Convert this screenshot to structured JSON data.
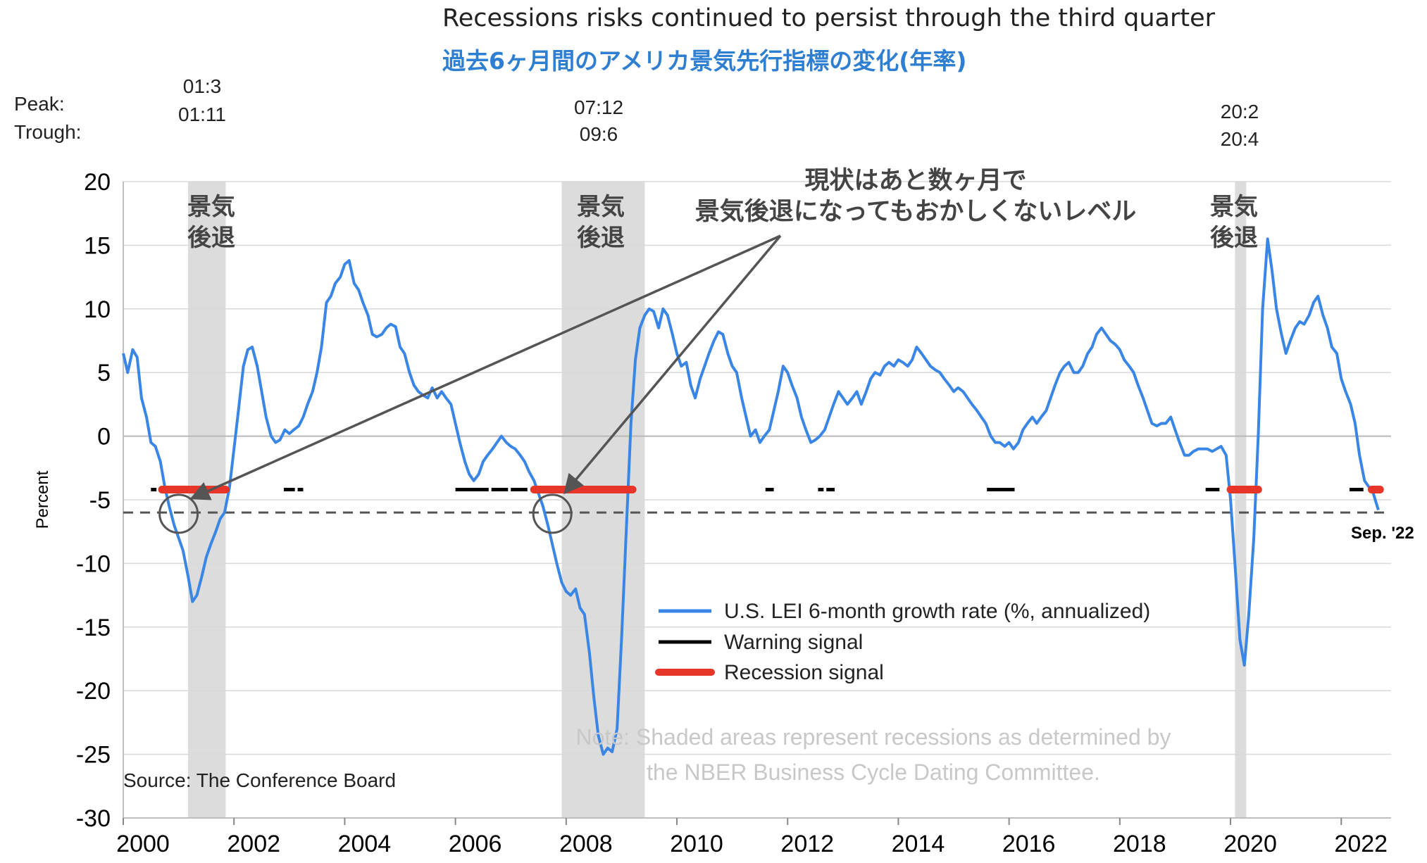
{
  "header": {
    "title": "Recessions risks continued to persist through the third quarter",
    "subtitle": "過去6ヶ月間のアメリカ景気先行指標の変化(年率)",
    "peak_label": "Peak:",
    "trough_label": "Trough:"
  },
  "colors": {
    "series": "#3a86e6",
    "warning": "#000000",
    "recession_signal": "#e8352a",
    "shade": "#dcdcdc",
    "grid": "#d9d9d9",
    "annotation": "#555555",
    "subtitle": "#2e7fd1"
  },
  "chart_data": {
    "type": "line",
    "ylabel": "Percent",
    "xlabel": "",
    "ylim": [
      -30,
      20
    ],
    "xlim": [
      2000,
      2022.9
    ],
    "yticks": [
      20,
      15,
      10,
      5,
      0,
      -5,
      -10,
      -15,
      -20,
      -25,
      -30
    ],
    "xtick_labels": [
      "2000",
      "2002",
      "2004",
      "2006",
      "2008",
      "2010",
      "2012",
      "2014",
      "2016",
      "2018",
      "2020",
      "2022"
    ],
    "grid": "horizontal",
    "legend_position": "lower-center",
    "recessions": [
      {
        "start": 2001.17,
        "end": 2001.85,
        "peak": "01:3",
        "trough": "01:11",
        "label": "景気\n後退"
      },
      {
        "start": 2007.92,
        "end": 2009.42,
        "peak": "07:12",
        "trough": "09:6",
        "label": "景気\n後退"
      },
      {
        "start": 2020.08,
        "end": 2020.25,
        "peak": "20:2",
        "trough": "20:4",
        "label": "景気\n後退"
      }
    ],
    "threshold": -6,
    "series": [
      {
        "name": "U.S. LEI 6-month growth rate (%, annualized)",
        "points": [
          [
            2000.0,
            6.5
          ],
          [
            2000.08,
            5
          ],
          [
            2000.17,
            6.8
          ],
          [
            2000.25,
            6.2
          ],
          [
            2000.33,
            3
          ],
          [
            2000.42,
            1.5
          ],
          [
            2000.5,
            -0.5
          ],
          [
            2000.58,
            -0.8
          ],
          [
            2000.67,
            -2
          ],
          [
            2000.75,
            -4
          ],
          [
            2000.83,
            -5.5
          ],
          [
            2000.92,
            -7
          ],
          [
            2001.0,
            -8
          ],
          [
            2001.08,
            -9
          ],
          [
            2001.17,
            -11
          ],
          [
            2001.25,
            -13
          ],
          [
            2001.33,
            -12.5
          ],
          [
            2001.42,
            -11
          ],
          [
            2001.5,
            -9.5
          ],
          [
            2001.58,
            -8.5
          ],
          [
            2001.67,
            -7.5
          ],
          [
            2001.75,
            -6.5
          ],
          [
            2001.83,
            -6
          ],
          [
            2001.92,
            -4
          ],
          [
            2002.0,
            -1
          ],
          [
            2002.08,
            2
          ],
          [
            2002.17,
            5.5
          ],
          [
            2002.25,
            6.8
          ],
          [
            2002.33,
            7
          ],
          [
            2002.42,
            5.5
          ],
          [
            2002.5,
            3.5
          ],
          [
            2002.58,
            1.5
          ],
          [
            2002.67,
            0
          ],
          [
            2002.75,
            -0.5
          ],
          [
            2002.83,
            -0.3
          ],
          [
            2002.92,
            0.5
          ],
          [
            2003.0,
            0.2
          ],
          [
            2003.08,
            0.5
          ],
          [
            2003.17,
            0.8
          ],
          [
            2003.25,
            1.5
          ],
          [
            2003.33,
            2.5
          ],
          [
            2003.42,
            3.5
          ],
          [
            2003.5,
            5
          ],
          [
            2003.58,
            7
          ],
          [
            2003.67,
            10.5
          ],
          [
            2003.75,
            11
          ],
          [
            2003.83,
            12
          ],
          [
            2003.92,
            12.5
          ],
          [
            2004.0,
            13.5
          ],
          [
            2004.08,
            13.8
          ],
          [
            2004.17,
            12
          ],
          [
            2004.25,
            11.5
          ],
          [
            2004.33,
            10.5
          ],
          [
            2004.42,
            9.5
          ],
          [
            2004.5,
            8
          ],
          [
            2004.58,
            7.8
          ],
          [
            2004.67,
            8
          ],
          [
            2004.75,
            8.5
          ],
          [
            2004.83,
            8.8
          ],
          [
            2004.92,
            8.6
          ],
          [
            2005.0,
            7
          ],
          [
            2005.08,
            6.5
          ],
          [
            2005.17,
            5
          ],
          [
            2005.25,
            4
          ],
          [
            2005.33,
            3.5
          ],
          [
            2005.42,
            3.2
          ],
          [
            2005.5,
            3
          ],
          [
            2005.58,
            3.8
          ],
          [
            2005.67,
            3
          ],
          [
            2005.75,
            3.5
          ],
          [
            2005.83,
            3
          ],
          [
            2005.92,
            2.5
          ],
          [
            2006.0,
            1
          ],
          [
            2006.08,
            -0.5
          ],
          [
            2006.17,
            -2
          ],
          [
            2006.25,
            -3
          ],
          [
            2006.33,
            -3.5
          ],
          [
            2006.42,
            -3
          ],
          [
            2006.5,
            -2
          ],
          [
            2006.58,
            -1.5
          ],
          [
            2006.67,
            -1
          ],
          [
            2006.75,
            -0.5
          ],
          [
            2006.83,
            0
          ],
          [
            2006.92,
            -0.5
          ],
          [
            2007.0,
            -0.8
          ],
          [
            2007.08,
            -1
          ],
          [
            2007.17,
            -1.5
          ],
          [
            2007.25,
            -2
          ],
          [
            2007.33,
            -2.8
          ],
          [
            2007.42,
            -3.5
          ],
          [
            2007.5,
            -4.5
          ],
          [
            2007.58,
            -5.5
          ],
          [
            2007.67,
            -7
          ],
          [
            2007.75,
            -8.5
          ],
          [
            2007.83,
            -10
          ],
          [
            2007.92,
            -11.5
          ],
          [
            2008.0,
            -12.2
          ],
          [
            2008.08,
            -12.5
          ],
          [
            2008.17,
            -12
          ],
          [
            2008.25,
            -13.5
          ],
          [
            2008.33,
            -14
          ],
          [
            2008.42,
            -17
          ],
          [
            2008.5,
            -20.5
          ],
          [
            2008.58,
            -23.5
          ],
          [
            2008.67,
            -25
          ],
          [
            2008.75,
            -24.5
          ],
          [
            2008.83,
            -24.8
          ],
          [
            2008.92,
            -23
          ],
          [
            2009.0,
            -16
          ],
          [
            2009.08,
            -8
          ],
          [
            2009.17,
            1
          ],
          [
            2009.25,
            6
          ],
          [
            2009.33,
            8.5
          ],
          [
            2009.42,
            9.5
          ],
          [
            2009.5,
            10
          ],
          [
            2009.58,
            9.8
          ],
          [
            2009.67,
            8.5
          ],
          [
            2009.75,
            10
          ],
          [
            2009.83,
            9.5
          ],
          [
            2009.92,
            8
          ],
          [
            2010.0,
            6.5
          ],
          [
            2010.08,
            5.5
          ],
          [
            2010.17,
            5.8
          ],
          [
            2010.25,
            4
          ],
          [
            2010.33,
            3
          ],
          [
            2010.42,
            4.5
          ],
          [
            2010.5,
            5.5
          ],
          [
            2010.58,
            6.5
          ],
          [
            2010.67,
            7.5
          ],
          [
            2010.75,
            8.2
          ],
          [
            2010.83,
            8
          ],
          [
            2010.92,
            6.5
          ],
          [
            2011.0,
            5.5
          ],
          [
            2011.08,
            5
          ],
          [
            2011.17,
            3
          ],
          [
            2011.25,
            1.5
          ],
          [
            2011.33,
            0
          ],
          [
            2011.42,
            0.5
          ],
          [
            2011.5,
            -0.5
          ],
          [
            2011.58,
            0
          ],
          [
            2011.67,
            0.5
          ],
          [
            2011.75,
            2
          ],
          [
            2011.83,
            3.5
          ],
          [
            2011.92,
            5.5
          ],
          [
            2012.0,
            5
          ],
          [
            2012.08,
            4
          ],
          [
            2012.17,
            3
          ],
          [
            2012.25,
            1.5
          ],
          [
            2012.33,
            0.5
          ],
          [
            2012.42,
            -0.5
          ],
          [
            2012.5,
            -0.3
          ],
          [
            2012.58,
            0
          ],
          [
            2012.67,
            0.5
          ],
          [
            2012.75,
            1.5
          ],
          [
            2012.83,
            2.5
          ],
          [
            2012.92,
            3.5
          ],
          [
            2013.0,
            3
          ],
          [
            2013.08,
            2.5
          ],
          [
            2013.17,
            3
          ],
          [
            2013.25,
            3.5
          ],
          [
            2013.33,
            2.5
          ],
          [
            2013.42,
            3.5
          ],
          [
            2013.5,
            4.5
          ],
          [
            2013.58,
            5
          ],
          [
            2013.67,
            4.8
          ],
          [
            2013.75,
            5.5
          ],
          [
            2013.83,
            5.8
          ],
          [
            2013.92,
            5.5
          ],
          [
            2014.0,
            6
          ],
          [
            2014.08,
            5.8
          ],
          [
            2014.17,
            5.5
          ],
          [
            2014.25,
            6
          ],
          [
            2014.33,
            7
          ],
          [
            2014.42,
            6.5
          ],
          [
            2014.5,
            6
          ],
          [
            2014.58,
            5.5
          ],
          [
            2014.67,
            5.2
          ],
          [
            2014.75,
            5
          ],
          [
            2014.83,
            4.5
          ],
          [
            2014.92,
            4
          ],
          [
            2015.0,
            3.5
          ],
          [
            2015.08,
            3.8
          ],
          [
            2015.17,
            3.5
          ],
          [
            2015.25,
            3
          ],
          [
            2015.33,
            2.5
          ],
          [
            2015.42,
            2
          ],
          [
            2015.5,
            1.5
          ],
          [
            2015.58,
            1
          ],
          [
            2015.67,
            0
          ],
          [
            2015.75,
            -0.5
          ],
          [
            2015.83,
            -0.5
          ],
          [
            2015.92,
            -0.8
          ],
          [
            2016.0,
            -0.5
          ],
          [
            2016.08,
            -1
          ],
          [
            2016.17,
            -0.5
          ],
          [
            2016.25,
            0.5
          ],
          [
            2016.33,
            1
          ],
          [
            2016.42,
            1.5
          ],
          [
            2016.5,
            1
          ],
          [
            2016.58,
            1.5
          ],
          [
            2016.67,
            2
          ],
          [
            2016.75,
            3
          ],
          [
            2016.83,
            4
          ],
          [
            2016.92,
            5
          ],
          [
            2017.0,
            5.5
          ],
          [
            2017.08,
            5.8
          ],
          [
            2017.17,
            5
          ],
          [
            2017.25,
            5
          ],
          [
            2017.33,
            5.5
          ],
          [
            2017.42,
            6.5
          ],
          [
            2017.5,
            7
          ],
          [
            2017.58,
            8
          ],
          [
            2017.67,
            8.5
          ],
          [
            2017.75,
            8
          ],
          [
            2017.83,
            7.5
          ],
          [
            2017.92,
            7.2
          ],
          [
            2018.0,
            6.8
          ],
          [
            2018.08,
            6
          ],
          [
            2018.17,
            5.5
          ],
          [
            2018.25,
            5
          ],
          [
            2018.33,
            4
          ],
          [
            2018.42,
            3
          ],
          [
            2018.5,
            2
          ],
          [
            2018.58,
            1
          ],
          [
            2018.67,
            0.8
          ],
          [
            2018.75,
            1
          ],
          [
            2018.83,
            1
          ],
          [
            2018.92,
            1.5
          ],
          [
            2019.0,
            0.5
          ],
          [
            2019.08,
            -0.5
          ],
          [
            2019.17,
            -1.5
          ],
          [
            2019.25,
            -1.5
          ],
          [
            2019.33,
            -1.2
          ],
          [
            2019.42,
            -1
          ],
          [
            2019.5,
            -1
          ],
          [
            2019.58,
            -1
          ],
          [
            2019.67,
            -1.2
          ],
          [
            2019.75,
            -1
          ],
          [
            2019.83,
            -0.8
          ],
          [
            2019.92,
            -1.5
          ],
          [
            2020.0,
            -5
          ],
          [
            2020.08,
            -10
          ],
          [
            2020.17,
            -16
          ],
          [
            2020.25,
            -18
          ],
          [
            2020.33,
            -14
          ],
          [
            2020.42,
            -8
          ],
          [
            2020.5,
            0
          ],
          [
            2020.58,
            10
          ],
          [
            2020.67,
            15.5
          ],
          [
            2020.75,
            13
          ],
          [
            2020.83,
            10
          ],
          [
            2020.92,
            8
          ],
          [
            2021.0,
            6.5
          ],
          [
            2021.08,
            7.5
          ],
          [
            2021.17,
            8.5
          ],
          [
            2021.25,
            9
          ],
          [
            2021.33,
            8.8
          ],
          [
            2021.42,
            9.5
          ],
          [
            2021.5,
            10.5
          ],
          [
            2021.58,
            11
          ],
          [
            2021.67,
            9.5
          ],
          [
            2021.75,
            8.5
          ],
          [
            2021.83,
            7
          ],
          [
            2021.92,
            6.5
          ],
          [
            2022.0,
            4.5
          ],
          [
            2022.08,
            3.5
          ],
          [
            2022.17,
            2.5
          ],
          [
            2022.25,
            1
          ],
          [
            2022.33,
            -1.5
          ],
          [
            2022.42,
            -3.5
          ],
          [
            2022.5,
            -4
          ],
          [
            2022.58,
            -4.5
          ],
          [
            2022.67,
            -5.8
          ]
        ]
      },
      {
        "name": "Warning signal",
        "value": -4.2,
        "segments": [
          [
            2000.5,
            2000.6
          ],
          [
            2001.75,
            2001.9
          ],
          [
            2002.9,
            2003.1
          ],
          [
            2003.15,
            2003.25
          ],
          [
            2006.0,
            2006.6
          ],
          [
            2006.65,
            2006.95
          ],
          [
            2007.0,
            2007.3
          ],
          [
            2011.6,
            2011.75
          ],
          [
            2012.55,
            2012.65
          ],
          [
            2012.7,
            2012.85
          ],
          [
            2015.6,
            2016.1
          ],
          [
            2019.55,
            2019.8
          ],
          [
            2022.15,
            2022.4
          ]
        ]
      },
      {
        "name": "Recession signal",
        "value": -4.2,
        "segments": [
          [
            2000.7,
            2001.85
          ],
          [
            2007.42,
            2009.2
          ],
          [
            2020.0,
            2020.5
          ],
          [
            2022.55,
            2022.7
          ]
        ]
      }
    ],
    "annotations": {
      "callout": "現状はあと数ヶ月で\n景気後退になってもおかしくないレベル",
      "end_label": "Sep. '22",
      "source": "Source: The Conference Board",
      "note": "Note: Shaded areas represent recessions as determined by\nthe NBER Business Cycle Dating Committee."
    }
  }
}
